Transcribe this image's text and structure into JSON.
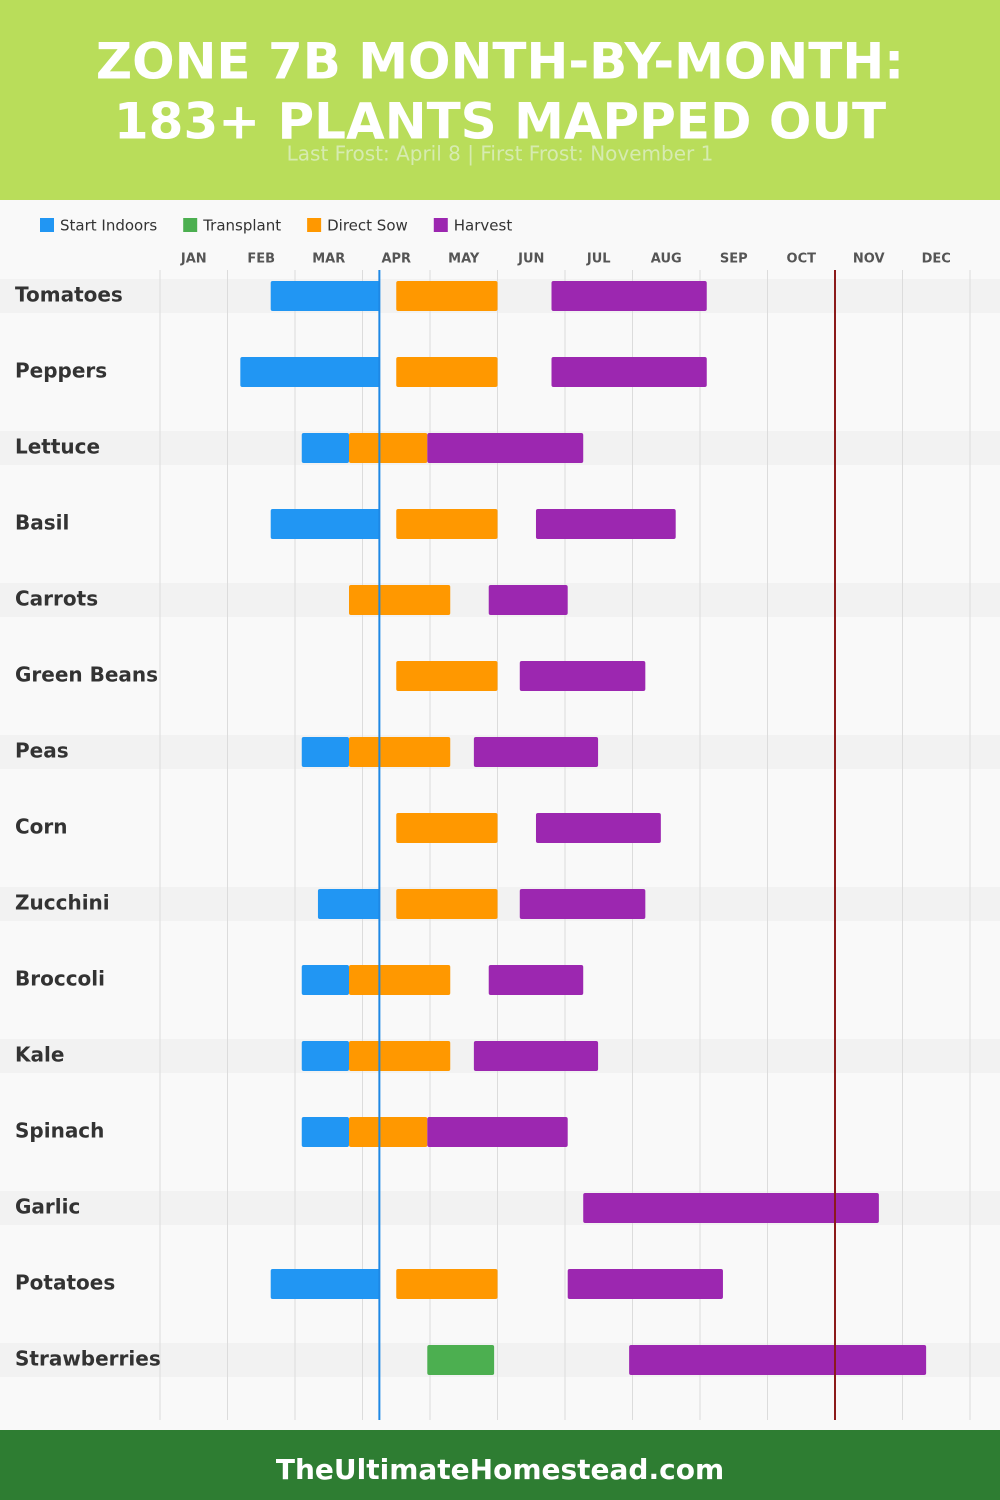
{
  "chart_data": {
    "type": "gantt",
    "title_lines": [
      "ZONE 7B MONTH-BY-MONTH:",
      "183+ PLANTS MAPPED OUT"
    ],
    "subtitle": "Last Frost: April 8 | First Frost: November 1",
    "categories": [
      "Tomatoes",
      "Peppers",
      "Lettuce",
      "Basil",
      "Carrots",
      "Green Beans",
      "Peas",
      "Corn",
      "Zucchini",
      "Broccoli",
      "Kale",
      "Spinach",
      "Garlic",
      "Potatoes",
      "Strawberries"
    ],
    "series": [
      {
        "name": "Start Indoors",
        "color": "#2196f3",
        "values": [
          [
            2.64,
            4.26
          ],
          [
            2.19,
            4.26
          ],
          [
            3.1,
            3.8
          ],
          [
            2.64,
            4.26
          ],
          null,
          null,
          [
            3.1,
            3.8
          ],
          null,
          [
            3.34,
            4.26
          ],
          [
            3.1,
            3.8
          ],
          [
            3.1,
            3.8
          ],
          [
            3.1,
            3.8
          ],
          null,
          [
            2.64,
            4.26
          ],
          null
        ]
      },
      {
        "name": "Transplant",
        "color": "#4caf50",
        "values": [
          null,
          null,
          null,
          null,
          null,
          null,
          null,
          null,
          null,
          null,
          null,
          null,
          null,
          null,
          [
            4.96,
            5.95
          ]
        ]
      },
      {
        "name": "Direct Sow",
        "color": "#ff9800",
        "values": [
          [
            4.5,
            6.0
          ],
          [
            4.5,
            6.0
          ],
          [
            3.8,
            4.96
          ],
          [
            4.5,
            6.0
          ],
          [
            3.8,
            5.3
          ],
          [
            4.5,
            6.0
          ],
          [
            3.8,
            5.3
          ],
          [
            4.5,
            6.0
          ],
          [
            4.5,
            6.0
          ],
          [
            3.8,
            5.3
          ],
          [
            3.8,
            5.3
          ],
          [
            3.8,
            4.96
          ],
          null,
          [
            4.5,
            6.0
          ],
          null
        ]
      },
      {
        "name": "Harvest",
        "color": "#9c27b0",
        "values": [
          [
            6.8,
            9.1
          ],
          [
            6.8,
            9.1
          ],
          [
            4.96,
            7.27
          ],
          [
            6.57,
            8.64
          ],
          [
            5.87,
            7.04
          ],
          [
            6.33,
            8.19
          ],
          [
            5.65,
            7.49
          ],
          [
            6.57,
            8.42
          ],
          [
            6.33,
            8.19
          ],
          [
            5.87,
            7.27
          ],
          [
            5.65,
            7.49
          ],
          [
            4.96,
            7.04
          ],
          [
            7.27,
            11.65
          ],
          [
            7.04,
            9.34
          ],
          [
            7.95,
            12.35
          ]
        ]
      }
    ],
    "xlim": [
      1,
      13
    ],
    "xticks": [
      {
        "value": 1,
        "label": "JAN"
      },
      {
        "value": 2,
        "label": "FEB"
      },
      {
        "value": 3,
        "label": "MAR"
      },
      {
        "value": 4,
        "label": "APR"
      },
      {
        "value": 5,
        "label": "MAY"
      },
      {
        "value": 6,
        "label": "JUN"
      },
      {
        "value": 7,
        "label": "JUL"
      },
      {
        "value": 8,
        "label": "AUG"
      },
      {
        "value": 9,
        "label": "SEP"
      },
      {
        "value": 10,
        "label": "OCT"
      },
      {
        "value": 11,
        "label": "NOV"
      },
      {
        "value": 12,
        "label": "DEC"
      }
    ],
    "grid": true,
    "frost_lines": [
      {
        "value": 4.25,
        "color": "#1e88e5"
      },
      {
        "value": 11.0,
        "color": "#8b1a1a"
      }
    ]
  },
  "footer": "TheUltimateHomestead.com"
}
